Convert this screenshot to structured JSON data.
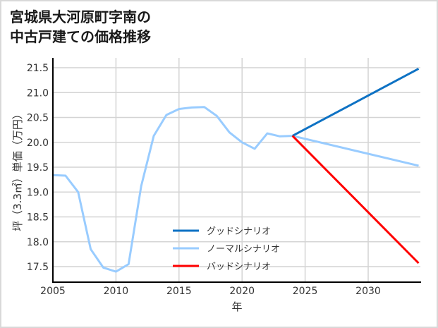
{
  "title_lines": [
    "宮城県大河原町字南の",
    "中古戸建ての価格推移"
  ],
  "chart_data": {
    "type": "line",
    "title": "宮城県大河原町字南の中古戸建ての価格推移",
    "xlabel": "年",
    "ylabel": "坪（3.3㎡）単価（万円）",
    "xlim": [
      2005,
      2034
    ],
    "ylim": [
      17.2,
      21.7
    ],
    "x_ticks": [
      2005,
      2010,
      2015,
      2020,
      2025,
      2030
    ],
    "y_ticks": [
      17.5,
      18.0,
      18.5,
      19.0,
      19.5,
      20.0,
      20.5,
      21.0,
      21.5
    ],
    "y_tick_labels": [
      "17.5",
      "18.0",
      "18.5",
      "19.0",
      "19.5",
      "20.0",
      "20.5",
      "21.0",
      "21.5"
    ],
    "grid": true,
    "legend_position": "lower center",
    "series": [
      {
        "name": "グッドシナリオ",
        "color": "#0e72c4",
        "x": [
          2024,
          2034
        ],
        "values": [
          20.13,
          21.48
        ]
      },
      {
        "name": "ノーマルシナリオ",
        "color": "#99ccff",
        "x": [
          2005,
          2006,
          2007,
          2008,
          2009,
          2010,
          2011,
          2012,
          2013,
          2014,
          2015,
          2016,
          2017,
          2018,
          2019,
          2020,
          2021,
          2022,
          2023,
          2024,
          2034
        ],
        "values": [
          19.34,
          19.33,
          19.0,
          17.85,
          17.48,
          17.4,
          17.55,
          19.12,
          20.13,
          20.55,
          20.67,
          20.7,
          20.71,
          20.53,
          20.2,
          20.0,
          19.87,
          20.18,
          20.12,
          20.13,
          19.53
        ]
      },
      {
        "name": "バッドシナリオ",
        "color": "#ff0000",
        "x": [
          2024,
          2034
        ],
        "values": [
          20.13,
          17.57
        ]
      }
    ]
  },
  "legend": {
    "good": "グッドシナリオ",
    "normal": "ノーマルシナリオ",
    "bad": "バッドシナリオ"
  },
  "axes": {
    "x_label": "年",
    "y_label": "坪（3.3㎡）単価（万円）"
  }
}
